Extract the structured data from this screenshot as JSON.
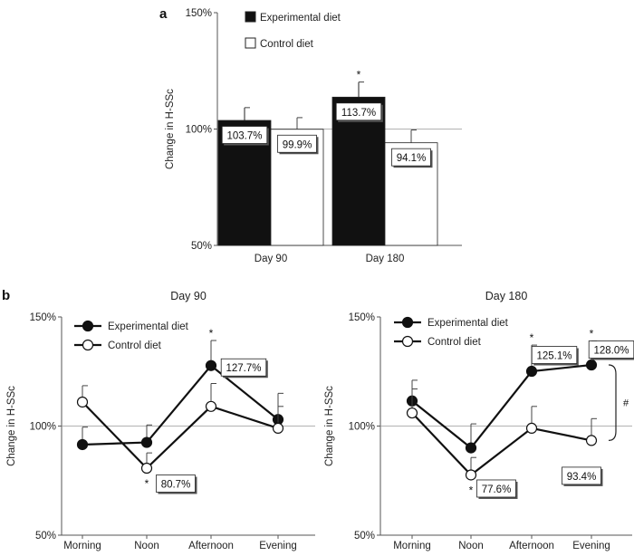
{
  "chart_data": [
    {
      "panel_label": "a",
      "type": "bar",
      "title": "",
      "ylabel": "Change in H-SSc",
      "xlabel": "",
      "ylim": [
        50,
        150
      ],
      "yticks": [
        "50%",
        "100%",
        "150%"
      ],
      "reference_line": 100,
      "categories": [
        "Day 90",
        "Day 180"
      ],
      "series": [
        {
          "name": "Experimental diet",
          "color": "#111111",
          "values": [
            103.7,
            113.7
          ],
          "errors": [
            5.5,
            6.5
          ],
          "labels": [
            "103.7%",
            "113.7%"
          ],
          "stars": [
            "",
            "*"
          ]
        },
        {
          "name": "Control diet",
          "color": "#ffffff",
          "values": [
            99.9,
            94.1
          ],
          "errors": [
            5.0,
            5.5
          ],
          "labels": [
            "99.9%",
            "94.1%"
          ],
          "stars": [
            "",
            ""
          ]
        }
      ],
      "legend": "top-left"
    },
    {
      "panel_label": "b",
      "type": "line",
      "title": "Day 90",
      "ylabel": "Change in H-SSc",
      "xlabel": "",
      "ylim": [
        50,
        150
      ],
      "yticks": [
        "50%",
        "100%",
        "150%"
      ],
      "reference_line": 100,
      "categories": [
        "Morning",
        "Noon",
        "Afternoon",
        "Evening"
      ],
      "series": [
        {
          "name": "Experimental diet",
          "filled": true,
          "values": [
            91.5,
            92.5,
            127.7,
            103.0
          ],
          "errors": [
            8.0,
            8.0,
            11.5,
            12.0
          ],
          "stars": [
            "",
            "",
            "*",
            ""
          ]
        },
        {
          "name": "Control diet",
          "filled": false,
          "values": [
            111.0,
            80.7,
            109.0,
            99.0
          ],
          "errors": [
            7.5,
            7.0,
            10.5,
            10.0
          ],
          "stars": [
            "",
            "*",
            "",
            ""
          ]
        }
      ],
      "annotations": [
        {
          "text": "127.7%",
          "category": "Afternoon",
          "value": 127.7
        },
        {
          "text": "80.7%",
          "category": "Noon",
          "value": 80.7
        }
      ],
      "legend": "top-left"
    },
    {
      "type": "line",
      "title": "Day 180",
      "ylabel": "Change in H-SSc",
      "xlabel": "",
      "ylim": [
        50,
        150
      ],
      "yticks": [
        "50%",
        "100%",
        "150%"
      ],
      "reference_line": 100,
      "categories": [
        "Morning",
        "Noon",
        "Afternoon",
        "Evening"
      ],
      "series": [
        {
          "name": "Experimental diet",
          "filled": true,
          "values": [
            111.5,
            90.0,
            125.1,
            128.0
          ],
          "errors": [
            9.5,
            11.0,
            12.0,
            11.0
          ],
          "stars": [
            "",
            "",
            "*",
            "*"
          ]
        },
        {
          "name": "Control diet",
          "filled": false,
          "values": [
            106.0,
            77.6,
            99.0,
            93.4
          ],
          "errors": [
            11.0,
            8.0,
            10.0,
            10.0
          ],
          "stars": [
            "",
            "*",
            "",
            ""
          ]
        }
      ],
      "annotations": [
        {
          "text": "125.1%",
          "category": "Afternoon",
          "value": 125.1
        },
        {
          "text": "128.0%",
          "category": "Evening",
          "value": 128.0
        },
        {
          "text": "77.6%",
          "category": "Noon",
          "value": 77.6
        },
        {
          "text": "93.4%",
          "category": "Evening",
          "value": 93.4
        }
      ],
      "bracket_label": "#",
      "legend": "top-left"
    }
  ]
}
